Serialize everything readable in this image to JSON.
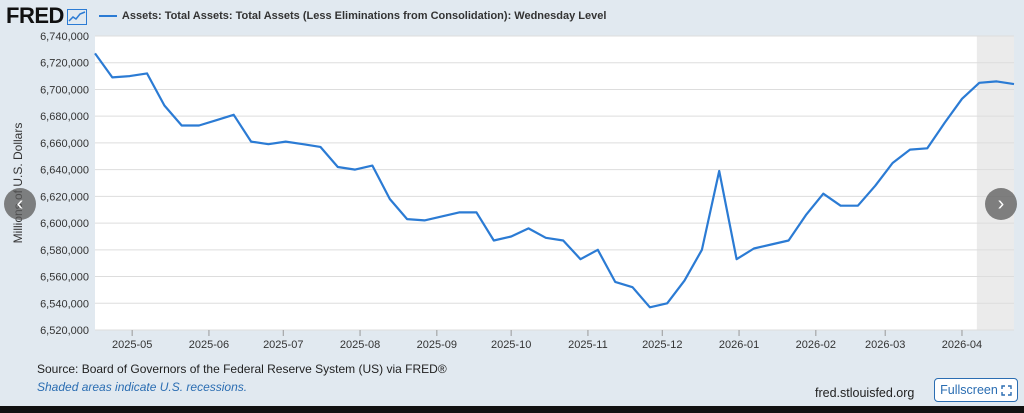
{
  "header": {
    "logo": "FRED",
    "legend_label": "Assets: Total Assets: Total Assets (Less Eliminations from Consolidation): Wednesday Level"
  },
  "colors": {
    "line": "#2b7bd4",
    "recession_shade": "#ebebeb",
    "grid": "#dddddd",
    "link": "#2a6db2"
  },
  "chart_data": {
    "type": "line",
    "title": "Assets: Total Assets: Total Assets (Less Eliminations from Consolidation): Wednesday Level",
    "ylabel": "Millions of U.S. Dollars",
    "xlabel": "",
    "ylim": [
      6520000,
      6740000
    ],
    "y_ticks": [
      6520000,
      6540000,
      6560000,
      6580000,
      6600000,
      6620000,
      6640000,
      6660000,
      6680000,
      6700000,
      6720000,
      6740000
    ],
    "y_tick_labels": [
      "6,520,000",
      "6,540,000",
      "6,560,000",
      "6,580,000",
      "6,600,000",
      "6,620,000",
      "6,640,000",
      "6,660,000",
      "6,680,000",
      "6,700,000",
      "6,720,000",
      "6,740,000"
    ],
    "x_range": [
      "2025-04-16",
      "2026-04-22"
    ],
    "x_ticks": [
      "2025-05-01",
      "2025-06-01",
      "2025-07-01",
      "2025-08-01",
      "2025-09-01",
      "2025-10-01",
      "2025-11-01",
      "2025-12-01",
      "2026-01-01",
      "2026-02-01",
      "2026-03-01",
      "2026-04-01"
    ],
    "x_tick_labels": [
      "2025-05",
      "2025-06",
      "2025-07",
      "2025-08",
      "2025-09",
      "2025-10",
      "2025-11",
      "2025-12",
      "2026-01",
      "2026-02",
      "2026-03",
      "2026-04"
    ],
    "recession_shading": {
      "start": "2026-04-07",
      "end": "2026-04-22"
    },
    "series": [
      {
        "name": "Assets: Total Assets: Total Assets (Less Eliminations from Consolidation): Wednesday Level",
        "x": [
          "2025-04-16",
          "2025-04-23",
          "2025-04-30",
          "2025-05-07",
          "2025-05-14",
          "2025-05-21",
          "2025-05-28",
          "2025-06-04",
          "2025-06-11",
          "2025-06-18",
          "2025-06-25",
          "2025-07-02",
          "2025-07-09",
          "2025-07-16",
          "2025-07-23",
          "2025-07-30",
          "2025-08-06",
          "2025-08-13",
          "2025-08-20",
          "2025-08-27",
          "2025-09-03",
          "2025-09-10",
          "2025-09-17",
          "2025-09-24",
          "2025-10-01",
          "2025-10-08",
          "2025-10-15",
          "2025-10-22",
          "2025-10-29",
          "2025-11-05",
          "2025-11-12",
          "2025-11-19",
          "2025-11-26",
          "2025-12-03",
          "2025-12-10",
          "2025-12-17",
          "2025-12-24",
          "2025-12-31",
          "2026-01-07",
          "2026-01-14",
          "2026-01-21",
          "2026-01-28",
          "2026-02-04",
          "2026-02-11",
          "2026-02-18",
          "2026-02-25",
          "2026-03-04",
          "2026-03-11",
          "2026-03-18",
          "2026-03-25",
          "2026-04-01",
          "2026-04-08",
          "2026-04-15",
          "2026-04-22"
        ],
        "values": [
          6727000,
          6709000,
          6710000,
          6712000,
          6688000,
          6673000,
          6673000,
          6677000,
          6681000,
          6661000,
          6659000,
          6661000,
          6659000,
          6657000,
          6642000,
          6640000,
          6643000,
          6618000,
          6603000,
          6602000,
          6605000,
          6608000,
          6608000,
          6587000,
          6590000,
          6596000,
          6589000,
          6587000,
          6573000,
          6580000,
          6556000,
          6552000,
          6537000,
          6540000,
          6557000,
          6580000,
          6639000,
          6573000,
          6581000,
          6584000,
          6587000,
          6606000,
          6622000,
          6613000,
          6613000,
          6628000,
          6645000,
          6655000,
          6656000,
          6675000,
          6693000,
          6705000,
          6706000,
          6704000
        ]
      }
    ]
  },
  "footer": {
    "source": "Source: Board of Governors of the Federal Reserve System (US) via FRED®",
    "note": "Shaded areas indicate U.S. recessions.",
    "site": "fred.stlouisfed.org",
    "fullscreen_label": "Fullscreen",
    "fullscreen_icon": "expand-icon"
  },
  "nav": {
    "prev_icon": "chevron-left-icon",
    "next_icon": "chevron-right-icon"
  }
}
